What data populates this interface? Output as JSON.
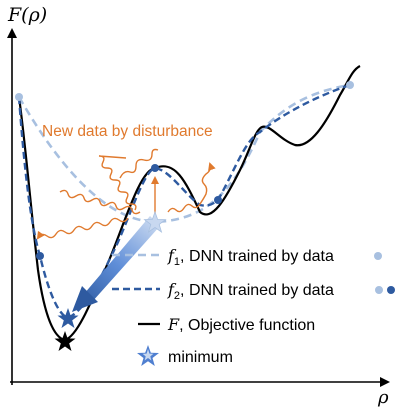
{
  "axes": {
    "y_label": "F(ρ)",
    "x_label": "ρ"
  },
  "annotation": {
    "text": "New data by disturbance",
    "color": "#e07a2e"
  },
  "legend": {
    "items": [
      {
        "symbol": "f",
        "sub": "1",
        "text": ", DNN trained by data",
        "color": "#a8c0e0"
      },
      {
        "symbol": "f",
        "sub": "2",
        "text": ", DNN trained by data",
        "color": "#2e5aa0"
      },
      {
        "symbol": "F",
        "sub": "",
        "text": ", Objective function",
        "color": "#000000"
      },
      {
        "symbol": "",
        "sub": "",
        "text": "minimum",
        "color": "#4f7fd0"
      }
    ]
  },
  "colors": {
    "f1": "#a8c0e0",
    "f2": "#2e5aa0",
    "objective": "#000000",
    "disturbance": "#e07a2e",
    "arrow": "#4f7fd0"
  }
}
